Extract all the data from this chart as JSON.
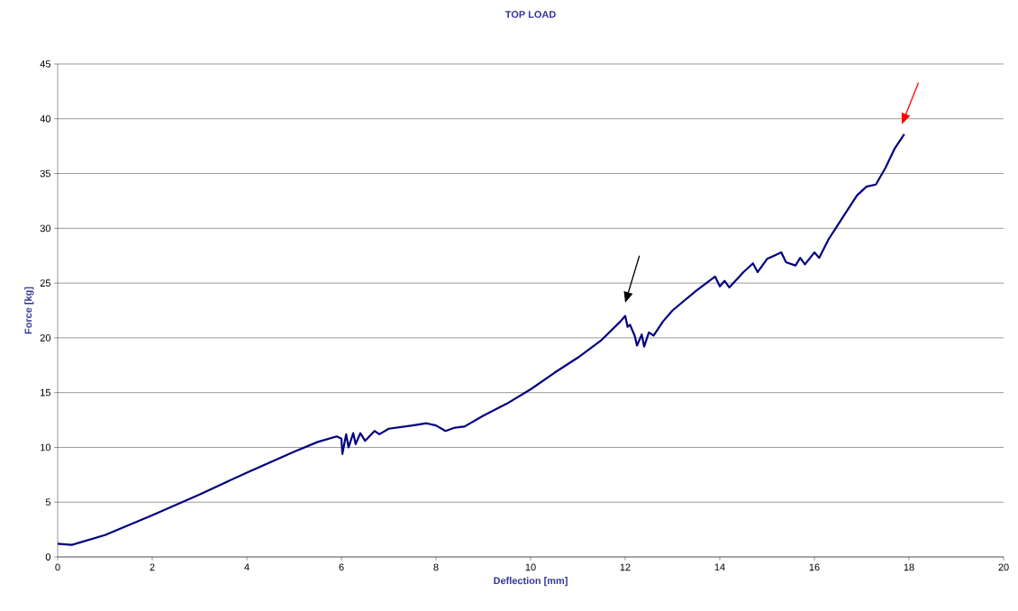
{
  "chart_data": {
    "type": "line",
    "title": "TOP LOAD",
    "xlabel": "Deflection [mm]",
    "ylabel": "Force [kg]",
    "x": [
      0,
      0.3,
      1,
      2,
      3,
      4,
      5,
      5.5,
      5.9,
      6.0,
      6.02,
      6.1,
      6.15,
      6.25,
      6.3,
      6.4,
      6.5,
      6.7,
      6.8,
      7.0,
      7.5,
      7.8,
      8.0,
      8.2,
      8.4,
      8.6,
      9.0,
      9.5,
      10,
      10.5,
      11,
      11.5,
      11.9,
      12.0,
      12.05,
      12.1,
      12.2,
      12.25,
      12.35,
      12.4,
      12.5,
      12.6,
      12.8,
      13,
      13.5,
      13.9,
      14.0,
      14.1,
      14.2,
      14.5,
      14.7,
      14.8,
      15.0,
      15.2,
      15.3,
      15.4,
      15.6,
      15.7,
      15.8,
      16.0,
      16.1,
      16.3,
      16.6,
      16.9,
      17.1,
      17.3,
      17.5,
      17.7,
      17.9
    ],
    "series": [
      {
        "color": "#000080",
        "values": [
          1.2,
          1.1,
          2.0,
          3.8,
          5.7,
          7.7,
          9.6,
          10.5,
          11.0,
          10.8,
          9.4,
          11.2,
          10.0,
          11.3,
          10.3,
          11.3,
          10.6,
          11.5,
          11.2,
          11.7,
          12.0,
          12.2,
          12.0,
          11.5,
          11.8,
          11.9,
          12.9,
          14.0,
          15.3,
          16.8,
          18.2,
          19.8,
          21.5,
          22.0,
          21.0,
          21.2,
          20.2,
          19.3,
          20.3,
          19.2,
          20.5,
          20.2,
          21.5,
          22.5,
          24.3,
          25.6,
          24.7,
          25.2,
          24.6,
          26.0,
          26.8,
          26.0,
          27.2,
          27.6,
          27.8,
          26.9,
          26.6,
          27.3,
          26.7,
          27.8,
          27.3,
          29.0,
          31.0,
          33.0,
          33.8,
          34.0,
          35.5,
          37.3,
          38.6
        ]
      }
    ],
    "xlim": [
      0,
      20
    ],
    "xticks": [
      0,
      2,
      4,
      6,
      8,
      10,
      12,
      14,
      16,
      18,
      20
    ],
    "ylim": [
      0,
      45
    ],
    "yticks": [
      0,
      5,
      10,
      15,
      20,
      25,
      30,
      35,
      40,
      45
    ],
    "grid": "y",
    "marker": "none",
    "line_style": "solid"
  }
}
